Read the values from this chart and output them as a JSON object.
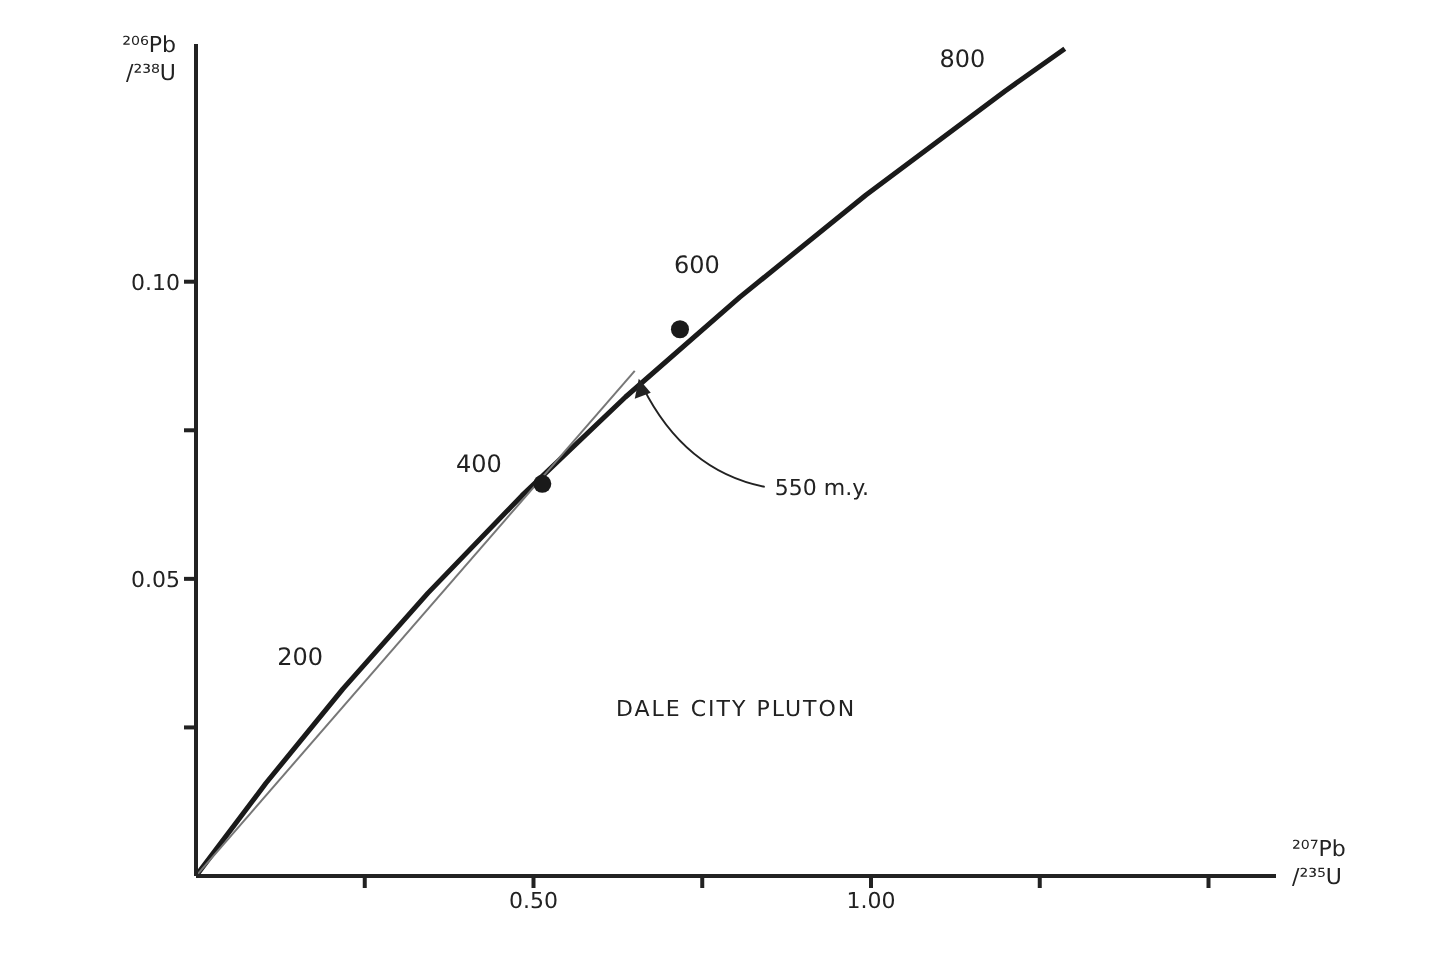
{
  "chart_data": {
    "type": "line",
    "xlabel": "²⁰⁷Pb/²³⁵U",
    "ylabel": "²⁰⁶Pb/²³⁸U",
    "xlim": [
      0,
      1.6
    ],
    "ylim": [
      0,
      0.14
    ],
    "xticks": [
      {
        "value": 0.25,
        "label": null
      },
      {
        "value": 0.5,
        "label": "0.50"
      },
      {
        "value": 0.75,
        "label": null
      },
      {
        "value": 1,
        "label": "1.00"
      },
      {
        "value": 1.25,
        "label": null
      },
      {
        "value": 1.5,
        "label": null
      }
    ],
    "yticks": [
      {
        "value": 0.025,
        "label": null
      },
      {
        "value": 0.05,
        "label": "0.05"
      },
      {
        "value": 0.075,
        "label": null
      },
      {
        "value": 0.1,
        "label": "0.10"
      }
    ],
    "grid": false,
    "legend": false,
    "series": [
      {
        "color": "#1a1a1a",
        "marker": "none",
        "line_style": "solid",
        "x": [
          0,
          0.1035,
          0.2177,
          0.3435,
          0.4828,
          0.6363,
          0.8057,
          0.9925,
          1.1988,
          1.2871
        ],
        "values": [
          0,
          0.0156,
          0.0315,
          0.0476,
          0.064,
          0.0806,
          0.0974,
          0.1146,
          0.1321,
          0.1392
        ]
      },
      {
        "type": "line",
        "color": "#777777",
        "marker": "none",
        "line_style": "solid",
        "x": [
          0,
          0.65
        ],
        "values": [
          0,
          0.085
        ]
      },
      {
        "type": "scatter",
        "color": "#1a1a1a",
        "marker": "circle",
        "x": [
          0.513,
          0.717
        ],
        "values": [
          0.066,
          0.092
        ]
      }
    ],
    "annotations": [
      {
        "text": "200",
        "x": 0.2177,
        "y": 0.0315
      },
      {
        "text": "400",
        "x": 0.4828,
        "y": 0.064
      },
      {
        "text": "600",
        "x": 0.8057,
        "y": 0.0974
      },
      {
        "text": "800",
        "x": 1.1988,
        "y": 0.1321
      },
      {
        "text": "550 m.y.",
        "x": 0.65,
        "y": 0.085
      },
      "DALE CITY PLUTON"
    ]
  }
}
